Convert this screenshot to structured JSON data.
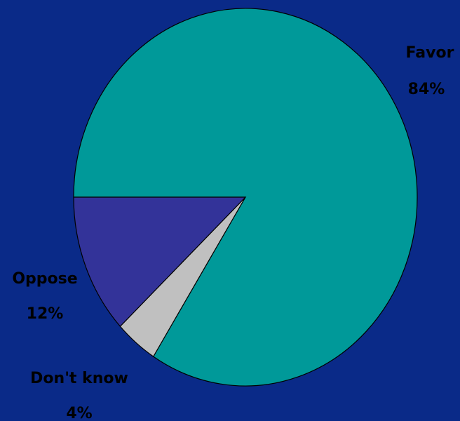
{
  "chart_data": {
    "type": "pie",
    "title": "",
    "slices": [
      {
        "label": "Favor",
        "pct_label": "84%",
        "value": 84,
        "color": "#009999"
      },
      {
        "label": "Don't know",
        "pct_label": "4%",
        "value": 4,
        "color": "#c0c0c0"
      },
      {
        "label": "Oppose",
        "pct_label": "12%",
        "value": 12,
        "color": "#333399"
      }
    ],
    "start_angle_deg": 180,
    "direction": "counterclockwise",
    "background": "#0a2a88",
    "legend": "none"
  }
}
